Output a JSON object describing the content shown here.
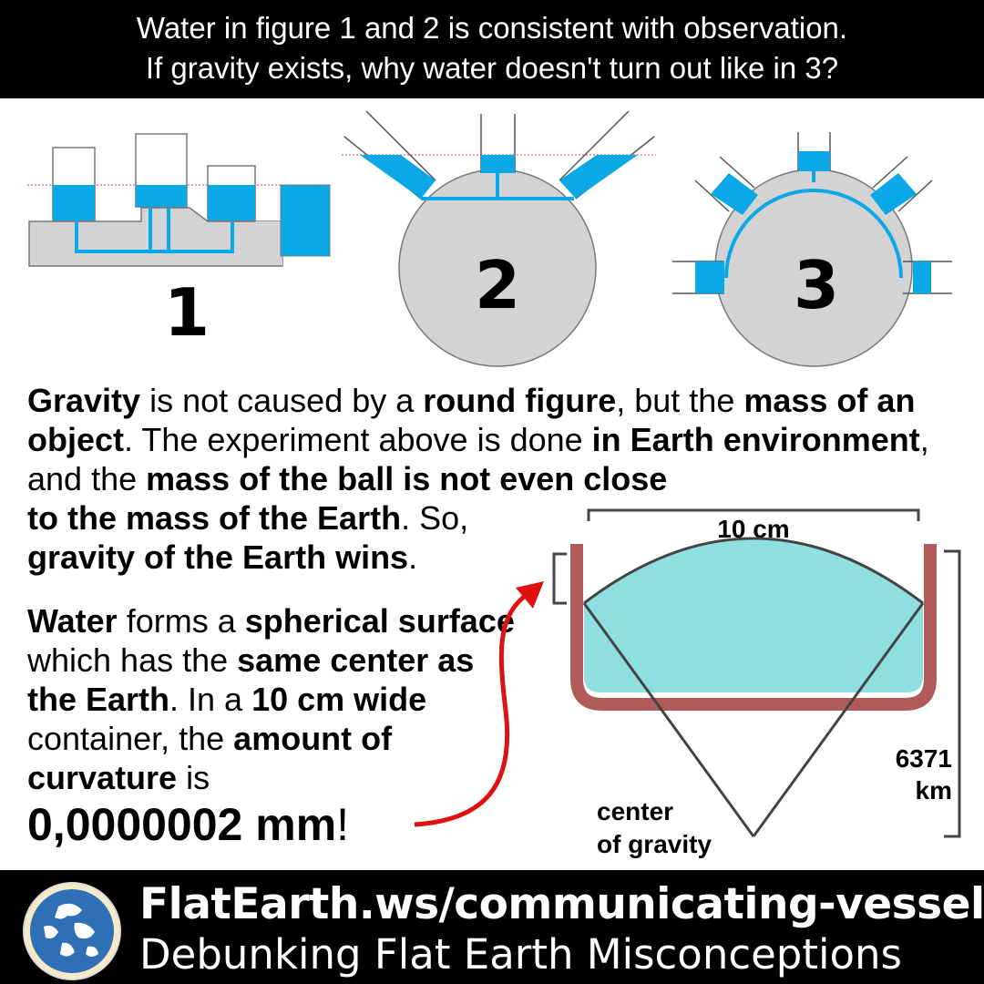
{
  "header": {
    "line1": "Water in figure 1 and 2 is consistent with observation.",
    "line2": "If gravity exists, why water doesn't turn out like in 3?"
  },
  "figures": {
    "fig1_label": "1",
    "fig2_label": "2",
    "fig3_label": "3"
  },
  "paragraph1": {
    "t1": "Gravity",
    "t2": " is not caused by a ",
    "t3": "round figure",
    "t4": ", but the ",
    "t5": "mass of an object",
    "t6": ". The experiment above is done ",
    "t7": "in Earth environment",
    "t8": ", and the ",
    "t9": "mass of the ball is not even close",
    "t10": "to the mass of the Earth",
    "t11": ". So, ",
    "t12": "gravity of the Earth wins",
    "t13": "."
  },
  "paragraph2": {
    "t1": "Water",
    "t2": " forms a ",
    "t3": "spherical surface",
    "t4": " which has the ",
    "t5": "same center as the Earth",
    "t6": ". In a ",
    "t7": "10 cm wide",
    "t8": " container, the ",
    "t9": "amount of curvature",
    "t10": " is",
    "t11": "0,0000002 mm",
    "t12": "!"
  },
  "container_diagram": {
    "width_label": "10 cm",
    "radius_label_1": "6371",
    "radius_label_2": "km",
    "center_label_1": "center",
    "center_label_2": "of gravity"
  },
  "footer": {
    "url": "FlatEarth.ws/communicating-vessels",
    "subtitle": "Debunking Flat Earth Misconceptions"
  },
  "colors": {
    "water": "#0aa8e6",
    "gray": "#d3d3d3",
    "container": "#b05a5a",
    "container_water": "#90dfe0",
    "arrow": "#e01010"
  }
}
